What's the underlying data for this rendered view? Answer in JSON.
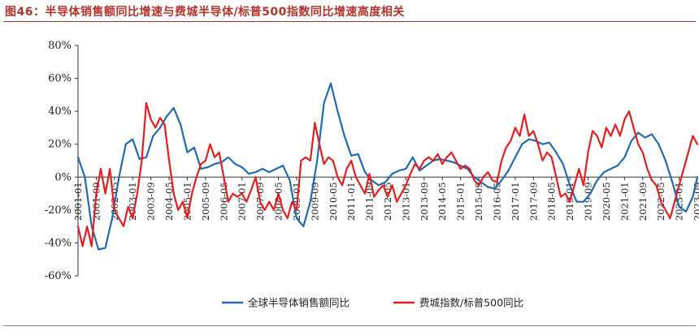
{
  "header": {
    "title": "图46：半导体销售额同比增速与费城半导体/标普500指数同比增速高度相关"
  },
  "colors": {
    "series1": "#1f6cb4",
    "series2": "#e51e1e",
    "title": "#b5332a"
  },
  "chart_data": {
    "type": "line",
    "title": "图46：半导体销售额同比增速与费城半导体/标普500指数同比增速高度相关",
    "xlabel": "",
    "ylabel": "",
    "ylim": [
      -60,
      80
    ],
    "yticks": [
      "80%",
      "60%",
      "40%",
      "20%",
      "0%",
      "-20%",
      "-40%",
      "-60%"
    ],
    "ytick_values": [
      80,
      60,
      40,
      20,
      0,
      -20,
      -40,
      -60
    ],
    "xlim": [
      "2001-01",
      "2023-09"
    ],
    "xticks": [
      "2001-01",
      "2001-09",
      "2002-05",
      "2003-01",
      "2003-09",
      "2004-05",
      "2005-01",
      "2005-09",
      "2006-05",
      "2007-01",
      "2007-09",
      "2008-05",
      "2009-01",
      "2009-09",
      "2010-05",
      "2011-01",
      "2011-09",
      "2012-05",
      "2013-01",
      "2013-09",
      "2014-05",
      "2015-01",
      "2015-09",
      "2016-05",
      "2017-01",
      "2017-09",
      "2018-05",
      "2019-01",
      "2019-09",
      "2020-05",
      "2021-01",
      "2021-09",
      "2022-05",
      "2023-01",
      "2023-09"
    ],
    "legend_position": "bottom-center",
    "grid": false,
    "series": [
      {
        "name": "全球半导体销售额同比",
        "points": [
          [
            "2001-01",
            12
          ],
          [
            "2001-04",
            0
          ],
          [
            "2001-07",
            -30
          ],
          [
            "2001-10",
            -44
          ],
          [
            "2002-01",
            -43
          ],
          [
            "2002-04",
            -25
          ],
          [
            "2002-07",
            0
          ],
          [
            "2002-10",
            20
          ],
          [
            "2003-01",
            23
          ],
          [
            "2003-04",
            11
          ],
          [
            "2003-07",
            12
          ],
          [
            "2003-10",
            25
          ],
          [
            "2004-01",
            30
          ],
          [
            "2004-04",
            37
          ],
          [
            "2004-07",
            42
          ],
          [
            "2004-10",
            32
          ],
          [
            "2005-01",
            15
          ],
          [
            "2005-04",
            18
          ],
          [
            "2005-07",
            5
          ],
          [
            "2005-10",
            6
          ],
          [
            "2006-01",
            8
          ],
          [
            "2006-04",
            9
          ],
          [
            "2006-07",
            12
          ],
          [
            "2006-10",
            8
          ],
          [
            "2007-01",
            6
          ],
          [
            "2007-04",
            2
          ],
          [
            "2007-07",
            3
          ],
          [
            "2007-10",
            5
          ],
          [
            "2008-01",
            3
          ],
          [
            "2008-04",
            5
          ],
          [
            "2008-07",
            7
          ],
          [
            "2008-10",
            -2
          ],
          [
            "2009-01",
            -25
          ],
          [
            "2009-04",
            -30
          ],
          [
            "2009-07",
            -15
          ],
          [
            "2009-10",
            10
          ],
          [
            "2010-01",
            45
          ],
          [
            "2010-04",
            57
          ],
          [
            "2010-07",
            40
          ],
          [
            "2010-10",
            25
          ],
          [
            "2011-01",
            13
          ],
          [
            "2011-04",
            14
          ],
          [
            "2011-07",
            3
          ],
          [
            "2011-10",
            -2
          ],
          [
            "2012-01",
            -5
          ],
          [
            "2012-04",
            -3
          ],
          [
            "2012-07",
            2
          ],
          [
            "2012-10",
            4
          ],
          [
            "2013-01",
            5
          ],
          [
            "2013-04",
            12
          ],
          [
            "2013-07",
            4
          ],
          [
            "2013-10",
            7
          ],
          [
            "2014-01",
            10
          ],
          [
            "2014-04",
            11
          ],
          [
            "2014-07",
            10
          ],
          [
            "2014-10",
            9
          ],
          [
            "2015-01",
            7
          ],
          [
            "2015-04",
            5
          ],
          [
            "2015-07",
            0
          ],
          [
            "2015-10",
            -3
          ],
          [
            "2016-01",
            -6
          ],
          [
            "2016-04",
            -7
          ],
          [
            "2016-07",
            -2
          ],
          [
            "2016-10",
            4
          ],
          [
            "2017-01",
            12
          ],
          [
            "2017-04",
            20
          ],
          [
            "2017-07",
            23
          ],
          [
            "2017-10",
            22
          ],
          [
            "2018-01",
            20
          ],
          [
            "2018-04",
            21
          ],
          [
            "2018-07",
            15
          ],
          [
            "2018-10",
            8
          ],
          [
            "2019-01",
            -5
          ],
          [
            "2019-04",
            -15
          ],
          [
            "2019-07",
            -15
          ],
          [
            "2019-10",
            -10
          ],
          [
            "2020-01",
            -2
          ],
          [
            "2020-04",
            3
          ],
          [
            "2020-07",
            5
          ],
          [
            "2020-10",
            7
          ],
          [
            "2021-01",
            12
          ],
          [
            "2021-04",
            22
          ],
          [
            "2021-07",
            27
          ],
          [
            "2021-10",
            24
          ],
          [
            "2022-01",
            26
          ],
          [
            "2022-04",
            20
          ],
          [
            "2022-07",
            10
          ],
          [
            "2022-10",
            -3
          ],
          [
            "2023-01",
            -18
          ],
          [
            "2023-04",
            -21
          ],
          [
            "2023-07",
            -12
          ],
          [
            "2023-09",
            0
          ]
        ]
      },
      {
        "name": "费城指数/标普500同比",
        "points": [
          [
            "2001-01",
            -30
          ],
          [
            "2001-03",
            -42
          ],
          [
            "2001-05",
            -30
          ],
          [
            "2001-07",
            -42
          ],
          [
            "2001-09",
            -10
          ],
          [
            "2001-11",
            5
          ],
          [
            "2002-01",
            -10
          ],
          [
            "2002-03",
            5
          ],
          [
            "2002-05",
            -20
          ],
          [
            "2002-07",
            -25
          ],
          [
            "2002-09",
            -30
          ],
          [
            "2002-11",
            -18
          ],
          [
            "2003-01",
            -25
          ],
          [
            "2003-03",
            -10
          ],
          [
            "2003-05",
            10
          ],
          [
            "2003-07",
            45
          ],
          [
            "2003-09",
            35
          ],
          [
            "2003-11",
            30
          ],
          [
            "2004-01",
            36
          ],
          [
            "2004-03",
            32
          ],
          [
            "2004-05",
            10
          ],
          [
            "2004-07",
            -10
          ],
          [
            "2004-09",
            -20
          ],
          [
            "2004-11",
            -15
          ],
          [
            "2005-01",
            -25
          ],
          [
            "2005-03",
            -10
          ],
          [
            "2005-05",
            0
          ],
          [
            "2005-07",
            8
          ],
          [
            "2005-09",
            10
          ],
          [
            "2005-11",
            20
          ],
          [
            "2006-01",
            12
          ],
          [
            "2006-03",
            15
          ],
          [
            "2006-05",
            0
          ],
          [
            "2006-07",
            -15
          ],
          [
            "2006-09",
            -10
          ],
          [
            "2006-11",
            -12
          ],
          [
            "2007-01",
            -10
          ],
          [
            "2007-03",
            -15
          ],
          [
            "2007-05",
            -8
          ],
          [
            "2007-07",
            0
          ],
          [
            "2007-09",
            -15
          ],
          [
            "2007-11",
            -20
          ],
          [
            "2008-01",
            -15
          ],
          [
            "2008-03",
            -20
          ],
          [
            "2008-05",
            -10
          ],
          [
            "2008-07",
            -20
          ],
          [
            "2008-09",
            -25
          ],
          [
            "2008-11",
            -15
          ],
          [
            "2009-01",
            -20
          ],
          [
            "2009-03",
            10
          ],
          [
            "2009-05",
            12
          ],
          [
            "2009-07",
            10
          ],
          [
            "2009-09",
            33
          ],
          [
            "2009-11",
            20
          ],
          [
            "2010-01",
            8
          ],
          [
            "2010-03",
            12
          ],
          [
            "2010-05",
            10
          ],
          [
            "2010-07",
            0
          ],
          [
            "2010-09",
            -5
          ],
          [
            "2010-11",
            5
          ],
          [
            "2011-01",
            10
          ],
          [
            "2011-03",
            0
          ],
          [
            "2011-05",
            -5
          ],
          [
            "2011-07",
            -10
          ],
          [
            "2011-09",
            2
          ],
          [
            "2011-11",
            -12
          ],
          [
            "2012-01",
            -8
          ],
          [
            "2012-03",
            -5
          ],
          [
            "2012-05",
            -12
          ],
          [
            "2012-07",
            -5
          ],
          [
            "2012-09",
            -15
          ],
          [
            "2012-11",
            -10
          ],
          [
            "2013-01",
            -5
          ],
          [
            "2013-03",
            2
          ],
          [
            "2013-05",
            8
          ],
          [
            "2013-07",
            5
          ],
          [
            "2013-09",
            10
          ],
          [
            "2013-11",
            12
          ],
          [
            "2014-01",
            10
          ],
          [
            "2014-03",
            14
          ],
          [
            "2014-05",
            8
          ],
          [
            "2014-07",
            12
          ],
          [
            "2014-09",
            15
          ],
          [
            "2014-11",
            10
          ],
          [
            "2015-01",
            5
          ],
          [
            "2015-03",
            7
          ],
          [
            "2015-05",
            5
          ],
          [
            "2015-07",
            -2
          ],
          [
            "2015-09",
            -5
          ],
          [
            "2015-11",
            0
          ],
          [
            "2016-01",
            3
          ],
          [
            "2016-03",
            -2
          ],
          [
            "2016-05",
            -3
          ],
          [
            "2016-07",
            10
          ],
          [
            "2016-09",
            18
          ],
          [
            "2016-11",
            22
          ],
          [
            "2017-01",
            30
          ],
          [
            "2017-03",
            25
          ],
          [
            "2017-05",
            38
          ],
          [
            "2017-07",
            25
          ],
          [
            "2017-09",
            28
          ],
          [
            "2017-11",
            20
          ],
          [
            "2018-01",
            10
          ],
          [
            "2018-03",
            15
          ],
          [
            "2018-05",
            12
          ],
          [
            "2018-07",
            0
          ],
          [
            "2018-09",
            -12
          ],
          [
            "2018-11",
            -10
          ],
          [
            "2019-01",
            -15
          ],
          [
            "2019-03",
            -5
          ],
          [
            "2019-05",
            5
          ],
          [
            "2019-07",
            -5
          ],
          [
            "2019-09",
            15
          ],
          [
            "2019-11",
            28
          ],
          [
            "2020-01",
            25
          ],
          [
            "2020-03",
            18
          ],
          [
            "2020-05",
            30
          ],
          [
            "2020-07",
            25
          ],
          [
            "2020-09",
            32
          ],
          [
            "2020-11",
            25
          ],
          [
            "2021-01",
            35
          ],
          [
            "2021-03",
            40
          ],
          [
            "2021-05",
            30
          ],
          [
            "2021-07",
            20
          ],
          [
            "2021-09",
            15
          ],
          [
            "2021-11",
            5
          ],
          [
            "2022-01",
            -2
          ],
          [
            "2022-03",
            -5
          ],
          [
            "2022-05",
            -15
          ],
          [
            "2022-07",
            -20
          ],
          [
            "2022-09",
            -25
          ],
          [
            "2022-11",
            -15
          ],
          [
            "2023-01",
            -5
          ],
          [
            "2023-03",
            5
          ],
          [
            "2023-05",
            15
          ],
          [
            "2023-07",
            25
          ],
          [
            "2023-09",
            20
          ]
        ]
      }
    ]
  }
}
